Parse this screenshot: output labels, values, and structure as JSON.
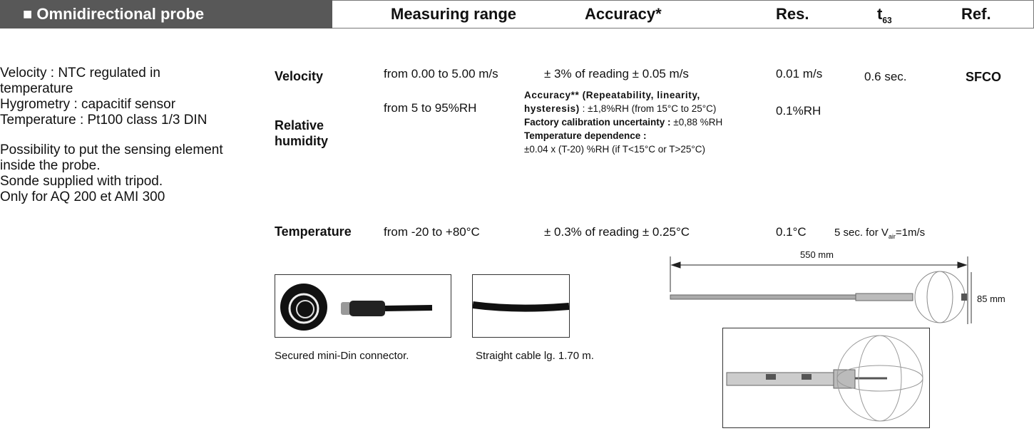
{
  "header": {
    "title": "■ Omnidirectional probe",
    "columns": [
      "Measuring range",
      "Accuracy*",
      "Res."
    ],
    "t63": {
      "text": "t",
      "subscript": "63"
    },
    "ref": "Ref."
  },
  "description": {
    "lines": [
      "Velocity : NTC regulated in",
      "temperature",
      "Hygrometry : capacitif sensor",
      "Temperature : Pt100 class 1/3 DIN",
      "Possibility to put the sensing element",
      "inside the probe.",
      "Sonde supplied with tripod.",
      "Only for AQ 200 et AMI 300"
    ]
  },
  "rows": [
    {
      "label": "Velocity",
      "range": "from 0.00 to 5.00 m/s",
      "accuracy": "± 3% of reading ± 0.05 m/s",
      "resolution": "0.01 m/s",
      "response": "0.6 sec.",
      "ref": "SFCO"
    },
    {
      "label": "Relative humidity",
      "range": "from 5 to 95%RH",
      "accuracy": {
        "lines": [
          {
            "bold": "Accuracy** (Repeatability, linearity,"
          },
          {
            "bold": "hysteresis)",
            "text": " : ±1,8%RH (from 15°C to 25°C)"
          },
          {
            "bold": "Factory calibration uncertainty :",
            "text": " ±0,88 %RH"
          },
          {
            "bold": "Temperature dependence :"
          },
          {
            "text": "±0.04 x (T-20) %RH (if T<15°C or T>25°C)"
          }
        ]
      },
      "resolution": "0.1%RH"
    },
    {
      "label": "Temperature",
      "range": "from -20 to +80°C",
      "accuracy": "± 0.3% of reading  ± 0.25°C",
      "resolution": "0.1°C",
      "response": {
        "text": "5 sec. for V",
        "subscript": "air",
        "suffix": "=1m/s"
      }
    }
  ],
  "images": {
    "connector_caption": "Secured mini-Din connector.",
    "cable_caption": "Straight cable lg. 1.70 m.",
    "length": "550 mm",
    "diameter": "85 mm"
  }
}
